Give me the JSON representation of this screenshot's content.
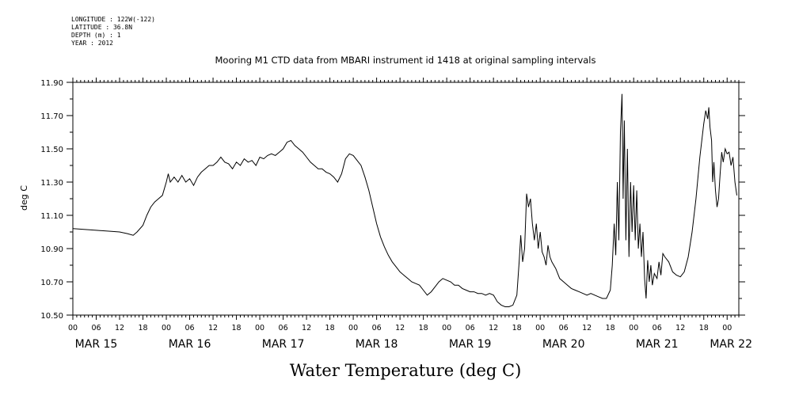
{
  "meta": {
    "longitude": "LONGITUDE : 122W(-122)",
    "latitude": "LATITUDE : 36.8N",
    "depth": "DEPTH (m) : 1",
    "year": "YEAR : 2012"
  },
  "chart_data": {
    "type": "line",
    "title": "Mooring M1 CTD data from MBARI instrument id 1418 at original sampling intervals",
    "xlabel": "Water Temperature (deg C)",
    "ylabel": "deg C",
    "ylim": [
      10.5,
      11.9
    ],
    "xlim_hours": [
      0,
      171
    ],
    "y_ticks": [
      "10.50",
      "10.70",
      "10.90",
      "11.10",
      "11.30",
      "11.50",
      "11.70",
      "11.90"
    ],
    "x_hour_ticks": [
      {
        "h": 0,
        "label": "00"
      },
      {
        "h": 6,
        "label": "06"
      },
      {
        "h": 12,
        "label": "12"
      },
      {
        "h": 18,
        "label": "18"
      },
      {
        "h": 24,
        "label": "00"
      },
      {
        "h": 30,
        "label": "06"
      },
      {
        "h": 36,
        "label": "12"
      },
      {
        "h": 42,
        "label": "18"
      },
      {
        "h": 48,
        "label": "00"
      },
      {
        "h": 54,
        "label": "06"
      },
      {
        "h": 60,
        "label": "12"
      },
      {
        "h": 66,
        "label": "18"
      },
      {
        "h": 72,
        "label": "00"
      },
      {
        "h": 78,
        "label": "06"
      },
      {
        "h": 84,
        "label": "12"
      },
      {
        "h": 90,
        "label": "18"
      },
      {
        "h": 96,
        "label": "00"
      },
      {
        "h": 102,
        "label": "06"
      },
      {
        "h": 108,
        "label": "12"
      },
      {
        "h": 114,
        "label": "18"
      },
      {
        "h": 120,
        "label": "00"
      },
      {
        "h": 126,
        "label": "06"
      },
      {
        "h": 132,
        "label": "12"
      },
      {
        "h": 138,
        "label": "18"
      },
      {
        "h": 144,
        "label": "00"
      },
      {
        "h": 150,
        "label": "06"
      },
      {
        "h": 156,
        "label": "12"
      },
      {
        "h": 162,
        "label": "18"
      },
      {
        "h": 168,
        "label": "00"
      }
    ],
    "x_day_labels": [
      {
        "h": 6,
        "label": "MAR 15"
      },
      {
        "h": 30,
        "label": "MAR 16"
      },
      {
        "h": 54,
        "label": "MAR 17"
      },
      {
        "h": 78,
        "label": "MAR 18"
      },
      {
        "h": 102,
        "label": "MAR 19"
      },
      {
        "h": 126,
        "label": "MAR 20"
      },
      {
        "h": 150,
        "label": "MAR 21"
      },
      {
        "h": 169,
        "label": "MAR 22"
      }
    ],
    "series": [
      {
        "color": "#000000",
        "points": [
          [
            0,
            11.02
          ],
          [
            6,
            11.01
          ],
          [
            12,
            11.0
          ],
          [
            14,
            10.99
          ],
          [
            15.5,
            10.98
          ],
          [
            16.5,
            11.0
          ],
          [
            18,
            11.04
          ],
          [
            19,
            11.1
          ],
          [
            20,
            11.15
          ],
          [
            21,
            11.18
          ],
          [
            22,
            11.2
          ],
          [
            23,
            11.22
          ],
          [
            24,
            11.3
          ],
          [
            24.5,
            11.35
          ],
          [
            25,
            11.3
          ],
          [
            26,
            11.33
          ],
          [
            27,
            11.3
          ],
          [
            28,
            11.34
          ],
          [
            29,
            11.3
          ],
          [
            30,
            11.32
          ],
          [
            31,
            11.28
          ],
          [
            32,
            11.33
          ],
          [
            33,
            11.36
          ],
          [
            34,
            11.38
          ],
          [
            35,
            11.4
          ],
          [
            36,
            11.4
          ],
          [
            37,
            11.42
          ],
          [
            38,
            11.45
          ],
          [
            39,
            11.42
          ],
          [
            40,
            11.41
          ],
          [
            41,
            11.38
          ],
          [
            42,
            11.42
          ],
          [
            43,
            11.4
          ],
          [
            44,
            11.44
          ],
          [
            45,
            11.42
          ],
          [
            46,
            11.43
          ],
          [
            47,
            11.4
          ],
          [
            48,
            11.45
          ],
          [
            49,
            11.44
          ],
          [
            50,
            11.46
          ],
          [
            51,
            11.47
          ],
          [
            52,
            11.46
          ],
          [
            53,
            11.48
          ],
          [
            54,
            11.5
          ],
          [
            55,
            11.54
          ],
          [
            56,
            11.55
          ],
          [
            57,
            11.52
          ],
          [
            58,
            11.5
          ],
          [
            59,
            11.48
          ],
          [
            60,
            11.45
          ],
          [
            61,
            11.42
          ],
          [
            62,
            11.4
          ],
          [
            63,
            11.38
          ],
          [
            64,
            11.38
          ],
          [
            65,
            11.36
          ],
          [
            66,
            11.35
          ],
          [
            67,
            11.33
          ],
          [
            68,
            11.3
          ],
          [
            69,
            11.35
          ],
          [
            70,
            11.44
          ],
          [
            71,
            11.47
          ],
          [
            72,
            11.46
          ],
          [
            73,
            11.43
          ],
          [
            74,
            11.4
          ],
          [
            75,
            11.33
          ],
          [
            76,
            11.25
          ],
          [
            77,
            11.15
          ],
          [
            78,
            11.05
          ],
          [
            79,
            10.97
          ],
          [
            80,
            10.91
          ],
          [
            81,
            10.86
          ],
          [
            82,
            10.82
          ],
          [
            83,
            10.79
          ],
          [
            84,
            10.76
          ],
          [
            85,
            10.74
          ],
          [
            86,
            10.72
          ],
          [
            87,
            10.7
          ],
          [
            88,
            10.69
          ],
          [
            89,
            10.68
          ],
          [
            90,
            10.65
          ],
          [
            91,
            10.62
          ],
          [
            92,
            10.64
          ],
          [
            93,
            10.67
          ],
          [
            94,
            10.7
          ],
          [
            95,
            10.72
          ],
          [
            96,
            10.71
          ],
          [
            97,
            10.7
          ],
          [
            98,
            10.68
          ],
          [
            99,
            10.68
          ],
          [
            100,
            10.66
          ],
          [
            101,
            10.65
          ],
          [
            102,
            10.64
          ],
          [
            103,
            10.64
          ],
          [
            104,
            10.63
          ],
          [
            105,
            10.63
          ],
          [
            106,
            10.62
          ],
          [
            107,
            10.63
          ],
          [
            108,
            10.62
          ],
          [
            109,
            10.58
          ],
          [
            110,
            10.56
          ],
          [
            111,
            10.55
          ],
          [
            112,
            10.55
          ],
          [
            113,
            10.56
          ],
          [
            114,
            10.62
          ],
          [
            114.6,
            10.82
          ],
          [
            115,
            10.98
          ],
          [
            115.5,
            10.82
          ],
          [
            116,
            10.9
          ],
          [
            116.5,
            11.23
          ],
          [
            117,
            11.15
          ],
          [
            117.5,
            11.2
          ],
          [
            118,
            11.05
          ],
          [
            118.5,
            10.95
          ],
          [
            119,
            11.05
          ],
          [
            119.5,
            10.9
          ],
          [
            120,
            11.0
          ],
          [
            120.5,
            10.88
          ],
          [
            121,
            10.85
          ],
          [
            121.5,
            10.8
          ],
          [
            122,
            10.92
          ],
          [
            122.5,
            10.85
          ],
          [
            123,
            10.82
          ],
          [
            124,
            10.78
          ],
          [
            125,
            10.72
          ],
          [
            126,
            10.7
          ],
          [
            127,
            10.68
          ],
          [
            128,
            10.66
          ],
          [
            129,
            10.65
          ],
          [
            130,
            10.64
          ],
          [
            131,
            10.63
          ],
          [
            132,
            10.62
          ],
          [
            133,
            10.63
          ],
          [
            134,
            10.62
          ],
          [
            135,
            10.61
          ],
          [
            136,
            10.6
          ],
          [
            137,
            10.6
          ],
          [
            138,
            10.65
          ],
          [
            138.5,
            10.8
          ],
          [
            139,
            11.05
          ],
          [
            139.4,
            10.86
          ],
          [
            139.8,
            11.3
          ],
          [
            140.2,
            10.95
          ],
          [
            140.6,
            11.6
          ],
          [
            141,
            11.83
          ],
          [
            141.3,
            11.2
          ],
          [
            141.6,
            11.67
          ],
          [
            142,
            10.95
          ],
          [
            142.4,
            11.5
          ],
          [
            142.8,
            10.85
          ],
          [
            143.2,
            11.3
          ],
          [
            143.6,
            11.0
          ],
          [
            144,
            11.28
          ],
          [
            144.4,
            10.95
          ],
          [
            144.8,
            11.25
          ],
          [
            145.2,
            10.9
          ],
          [
            145.6,
            11.05
          ],
          [
            146,
            10.85
          ],
          [
            146.4,
            11.0
          ],
          [
            146.8,
            10.72
          ],
          [
            147.2,
            10.6
          ],
          [
            147.6,
            10.83
          ],
          [
            148,
            10.7
          ],
          [
            148.4,
            10.8
          ],
          [
            148.8,
            10.68
          ],
          [
            149.3,
            10.75
          ],
          [
            150,
            10.72
          ],
          [
            150.5,
            10.82
          ],
          [
            151,
            10.74
          ],
          [
            151.5,
            10.87
          ],
          [
            152,
            10.85
          ],
          [
            153,
            10.82
          ],
          [
            154,
            10.76
          ],
          [
            155,
            10.74
          ],
          [
            156,
            10.73
          ],
          [
            157,
            10.76
          ],
          [
            158,
            10.85
          ],
          [
            159,
            11.0
          ],
          [
            160,
            11.2
          ],
          [
            161,
            11.45
          ],
          [
            162,
            11.65
          ],
          [
            162.5,
            11.73
          ],
          [
            163,
            11.68
          ],
          [
            163.3,
            11.75
          ],
          [
            163.6,
            11.63
          ],
          [
            164,
            11.55
          ],
          [
            164.3,
            11.3
          ],
          [
            164.6,
            11.42
          ],
          [
            165,
            11.25
          ],
          [
            165.4,
            11.15
          ],
          [
            165.8,
            11.2
          ],
          [
            166.2,
            11.35
          ],
          [
            166.6,
            11.48
          ],
          [
            167,
            11.42
          ],
          [
            167.5,
            11.5
          ],
          [
            168,
            11.47
          ],
          [
            168.5,
            11.48
          ],
          [
            169,
            11.4
          ],
          [
            169.5,
            11.45
          ],
          [
            170,
            11.3
          ],
          [
            170.5,
            11.22
          ]
        ]
      }
    ]
  }
}
